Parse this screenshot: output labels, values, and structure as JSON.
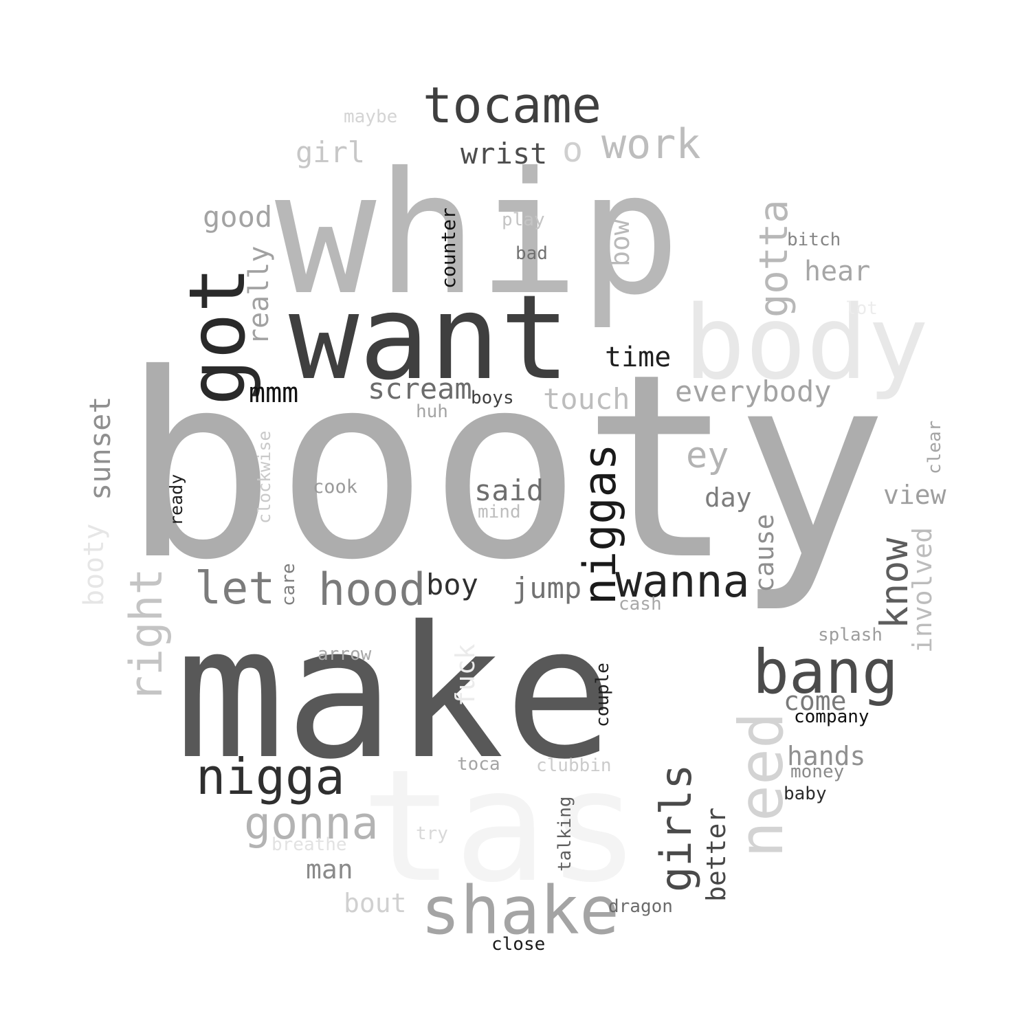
{
  "words": [
    {
      "text": "booty",
      "color": "#adadad"
    },
    {
      "text": "make",
      "color": "#585858"
    },
    {
      "text": "whip",
      "color": "#b8b8b8"
    },
    {
      "text": "tas",
      "color": "#f4f4f4"
    },
    {
      "text": "want",
      "color": "#3f3f3f"
    },
    {
      "text": "body",
      "color": "#e8e8e8"
    },
    {
      "text": "got",
      "color": "#2a2a2a"
    },
    {
      "text": "tocame",
      "color": "#3f3f3f"
    },
    {
      "text": "shake",
      "color": "#a4a4a4"
    },
    {
      "text": "bang",
      "color": "#4b4b4b"
    },
    {
      "text": "need",
      "color": "#d3d3d3"
    },
    {
      "text": "nigga",
      "color": "#2f2f2f"
    },
    {
      "text": "niggas",
      "color": "#1a1a1a"
    },
    {
      "text": "girls",
      "color": "#4a4a4a"
    },
    {
      "text": "wanna",
      "color": "#232323"
    },
    {
      "text": "hood",
      "color": "#7a7a7a"
    },
    {
      "text": "gonna",
      "color": "#b3b3b3"
    },
    {
      "text": "let",
      "color": "#7b7b7b"
    },
    {
      "text": "right",
      "color": "#c4c4c4"
    },
    {
      "text": "work",
      "color": "#bdbdbd"
    },
    {
      "text": "gotta",
      "color": "#b8b8b8"
    },
    {
      "text": "know",
      "color": "#5d5d5d"
    },
    {
      "text": "o",
      "color": "#cfcfcf"
    },
    {
      "text": "everybody",
      "color": "#a3a3a3"
    },
    {
      "text": "touch",
      "color": "#bdbdbd"
    },
    {
      "text": "scream",
      "color": "#6c6c6c"
    },
    {
      "text": "ey",
      "color": "#b3b3b3"
    },
    {
      "text": "sunset",
      "color": "#8f8f8f"
    },
    {
      "text": "good",
      "color": "#a3a3a3"
    },
    {
      "text": "girl",
      "color": "#c7c7c7"
    },
    {
      "text": "wrist",
      "color": "#4d4d4d"
    },
    {
      "text": "really",
      "color": "#a1a1a1"
    },
    {
      "text": "hear",
      "color": "#a6a6a6"
    },
    {
      "text": "time",
      "color": "#1f1f1f"
    },
    {
      "text": "said",
      "color": "#6e6e6e"
    },
    {
      "text": "boy",
      "color": "#303030"
    },
    {
      "text": "jump",
      "color": "#727272"
    },
    {
      "text": "mmm",
      "color": "#111111"
    },
    {
      "text": "booty",
      "color": "#e6e6e6"
    },
    {
      "text": "bow",
      "color": "#b9b9b9"
    },
    {
      "text": "day",
      "color": "#7d7d7d"
    },
    {
      "text": "cause",
      "color": "#8e8e8e"
    },
    {
      "text": "view",
      "color": "#9e9e9e"
    },
    {
      "text": "involved",
      "color": "#bcbcbc"
    },
    {
      "text": "hands",
      "color": "#909090"
    },
    {
      "text": "come",
      "color": "#7a7a7a"
    },
    {
      "text": "better",
      "color": "#474747"
    },
    {
      "text": "man",
      "color": "#8a8a8a"
    },
    {
      "text": "bout",
      "color": "#d0d0d0"
    },
    {
      "text": "fuck",
      "color": "#ebebeb"
    },
    {
      "text": "counter",
      "color": "#111111"
    },
    {
      "text": "clockwise",
      "color": "#c9c9c9"
    },
    {
      "text": "ready",
      "color": "#1f1f1f"
    },
    {
      "text": "cook",
      "color": "#9a9a9a"
    },
    {
      "text": "maybe",
      "color": "#d4d4d4"
    },
    {
      "text": "play",
      "color": "#c4c4c4"
    },
    {
      "text": "bad",
      "color": "#717171"
    },
    {
      "text": "bitch",
      "color": "#858585"
    },
    {
      "text": "lot",
      "color": "#ececec"
    },
    {
      "text": "boys",
      "color": "#3e3e3e"
    },
    {
      "text": "huh",
      "color": "#a4a4a4"
    },
    {
      "text": "mind",
      "color": "#bdbdbd"
    },
    {
      "text": "care",
      "color": "#7e7e7e"
    },
    {
      "text": "cash",
      "color": "#a8a8a8"
    },
    {
      "text": "clear",
      "color": "#a4a4a4"
    },
    {
      "text": "splash",
      "color": "#9d9d9d"
    },
    {
      "text": "arrow",
      "color": "#a8a8a8"
    },
    {
      "text": "couple",
      "color": "#1f1f1f"
    },
    {
      "text": "company",
      "color": "#0f0f0f"
    },
    {
      "text": "money",
      "color": "#8a8a8a"
    },
    {
      "text": "baby",
      "color": "#2c2c2c"
    },
    {
      "text": "toca",
      "color": "#a4a4a4"
    },
    {
      "text": "clubbin",
      "color": "#cbcbcb"
    },
    {
      "text": "talking",
      "color": "#5f5f5f"
    },
    {
      "text": "try",
      "color": "#d8d8d8"
    },
    {
      "text": "breathe",
      "color": "#e2e2e2"
    },
    {
      "text": "dragon",
      "color": "#6b6b6b"
    },
    {
      "text": "close",
      "color": "#1a1a1a"
    }
  ]
}
